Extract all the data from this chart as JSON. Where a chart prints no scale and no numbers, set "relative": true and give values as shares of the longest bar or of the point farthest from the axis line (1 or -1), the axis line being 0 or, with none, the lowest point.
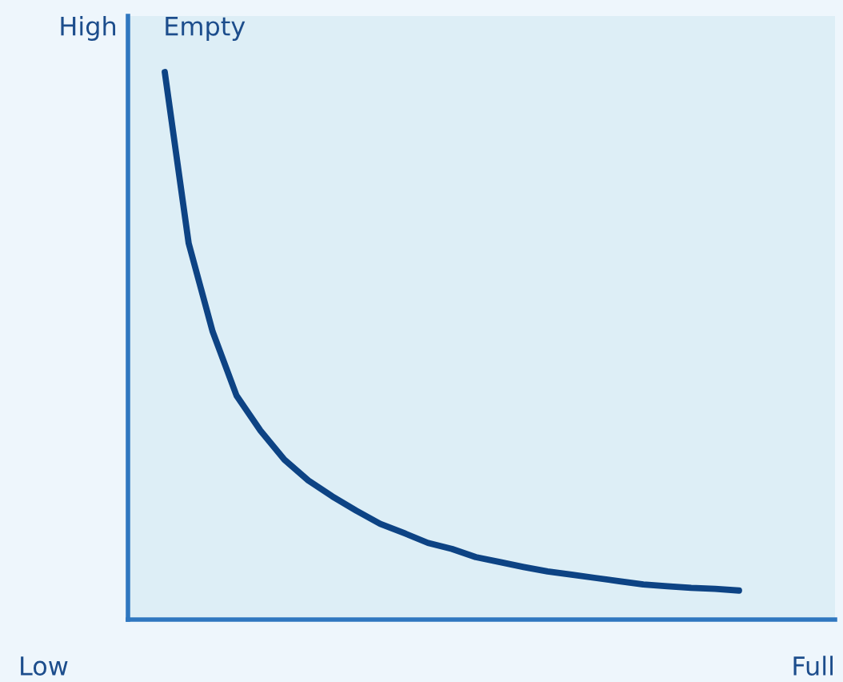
{
  "chart_data": {
    "type": "line",
    "relative": true,
    "categories": [
      null,
      null,
      null,
      null,
      null,
      null,
      null,
      null,
      null,
      null,
      null,
      null,
      null,
      null,
      null,
      null,
      null,
      null,
      null,
      null,
      null,
      null,
      null,
      null,
      null
    ],
    "series": [
      {
        "color": "#0d4384",
        "values": [
          1,
          0.687,
          0.526,
          0.409,
          0.345,
          0.292,
          0.254,
          0.225,
          0.199,
          0.175,
          0.158,
          0.14,
          0.129,
          0.114,
          0.105,
          0.096,
          0.088,
          0.082,
          0.076,
          0.07,
          0.064,
          0.061,
          0.058,
          0.056,
          0.053
        ]
      }
    ],
    "annotations": [
      "High",
      "Low",
      "Empty",
      "Full"
    ],
    "grid": false,
    "legend": false,
    "marker": "none",
    "line_style": "solid"
  }
}
